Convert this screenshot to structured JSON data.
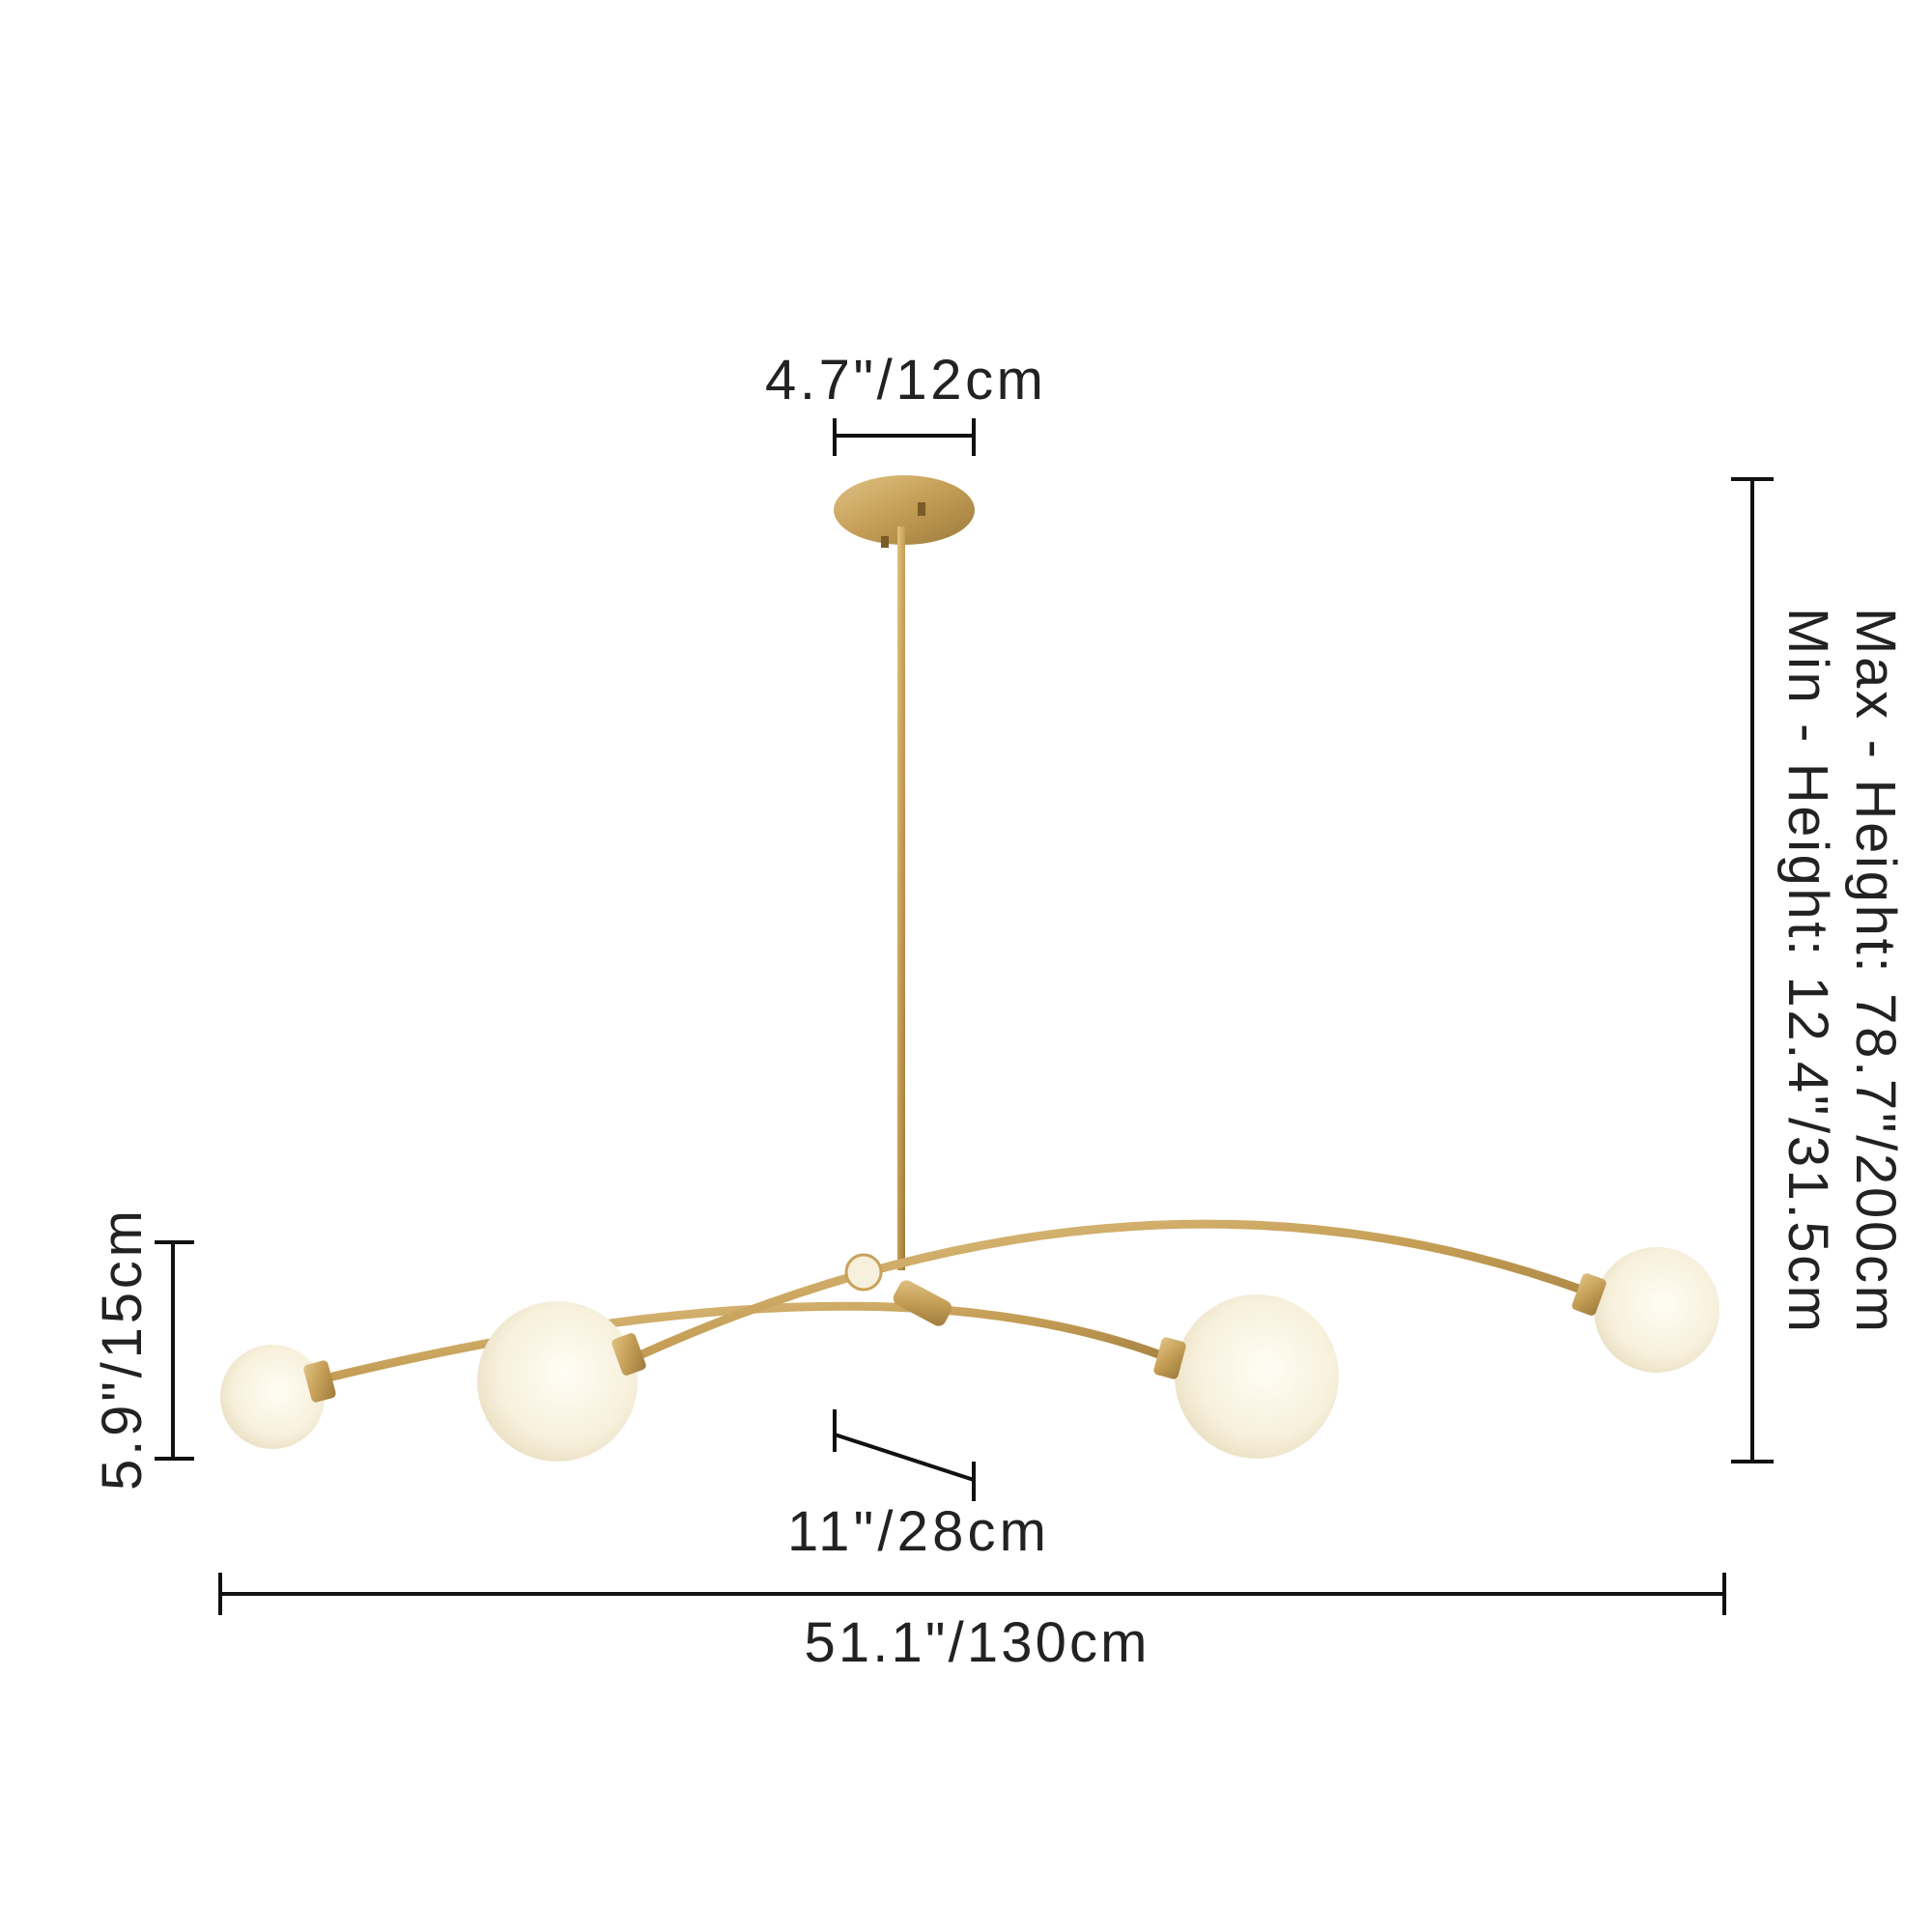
{
  "dimensions": {
    "canopy_width": "4.7\"/12cm",
    "max_height": "Max - Height: 78.7\"/200cm",
    "min_height": "Min - Height: 12.4\"/31.5cm",
    "fixture_height": "5.9\"/15cm",
    "arm_offset": "11\"/28cm",
    "overall_width": "51.1\"/130cm"
  },
  "colors": {
    "brass": "#c8a25a",
    "globe": "#f7f2e2",
    "dimension_lines": "#111111"
  }
}
